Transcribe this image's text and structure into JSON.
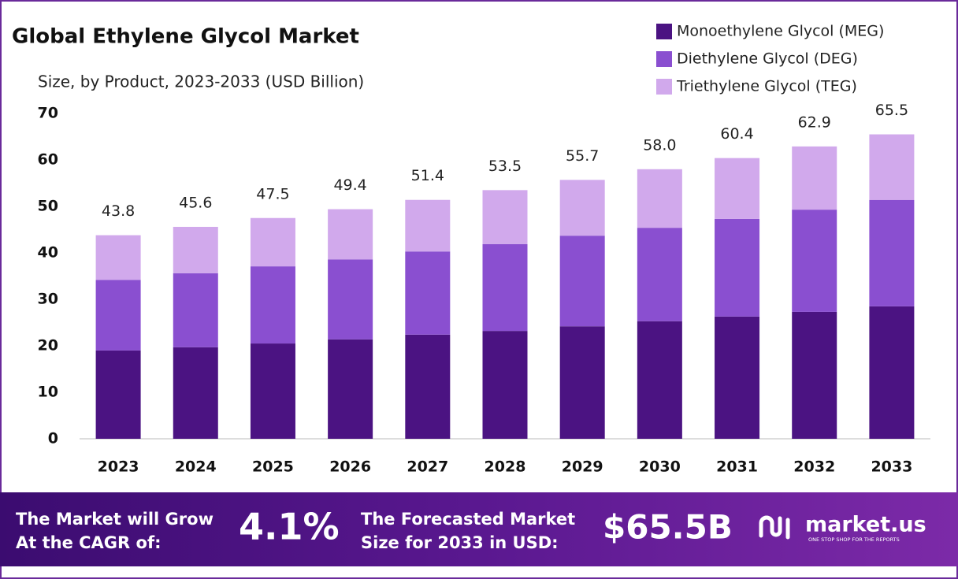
{
  "chart_data": {
    "type": "stacked_bar",
    "title": "Global Ethylene Glycol Market",
    "subtitle": "Size, by Product, 2023-2033 (USD Billion)",
    "categories": [
      "2023",
      "2024",
      "2025",
      "2026",
      "2027",
      "2028",
      "2029",
      "2030",
      "2031",
      "2032",
      "2033"
    ],
    "series": [
      {
        "name": "Monoethylene Glycol (MEG)",
        "color": "#4b1382",
        "values": [
          19.0,
          19.7,
          20.5,
          21.4,
          22.4,
          23.2,
          24.2,
          25.3,
          26.3,
          27.3,
          28.5
        ]
      },
      {
        "name": "Diethylene Glycol (DEG)",
        "color": "#8a4fd0",
        "values": [
          15.2,
          15.9,
          16.6,
          17.2,
          17.9,
          18.7,
          19.5,
          20.1,
          21.0,
          22.0,
          22.9
        ]
      },
      {
        "name": "Triethylene Glycol (TEG)",
        "color": "#d1a9ec",
        "values": [
          9.6,
          10.0,
          10.4,
          10.8,
          11.1,
          11.6,
          12.0,
          12.6,
          13.1,
          13.6,
          14.1
        ]
      }
    ],
    "totals": [
      43.8,
      45.6,
      47.5,
      49.4,
      51.4,
      53.5,
      55.7,
      58.0,
      60.4,
      62.9,
      65.5
    ],
    "total_labels": [
      "43.8",
      "45.6",
      "47.5",
      "49.4",
      "51.4",
      "53.5",
      "55.7",
      "58.0",
      "60.4",
      "62.9",
      "65.5"
    ],
    "ylim": [
      0,
      70
    ],
    "yticks": [
      0,
      10,
      20,
      30,
      40,
      50,
      60,
      70
    ],
    "grid": false,
    "legend": "top-right"
  },
  "footer": {
    "cagr_text": [
      "The Market will Grow",
      "At the CAGR of:"
    ],
    "cagr_value": "4.1%",
    "forecast_text": [
      "The Forecasted Market",
      "Size for 2033 in USD:"
    ],
    "forecast_value": "$65.5B",
    "brand": "market.us",
    "tagline": "ONE STOP SHOP FOR THE REPORTS"
  }
}
